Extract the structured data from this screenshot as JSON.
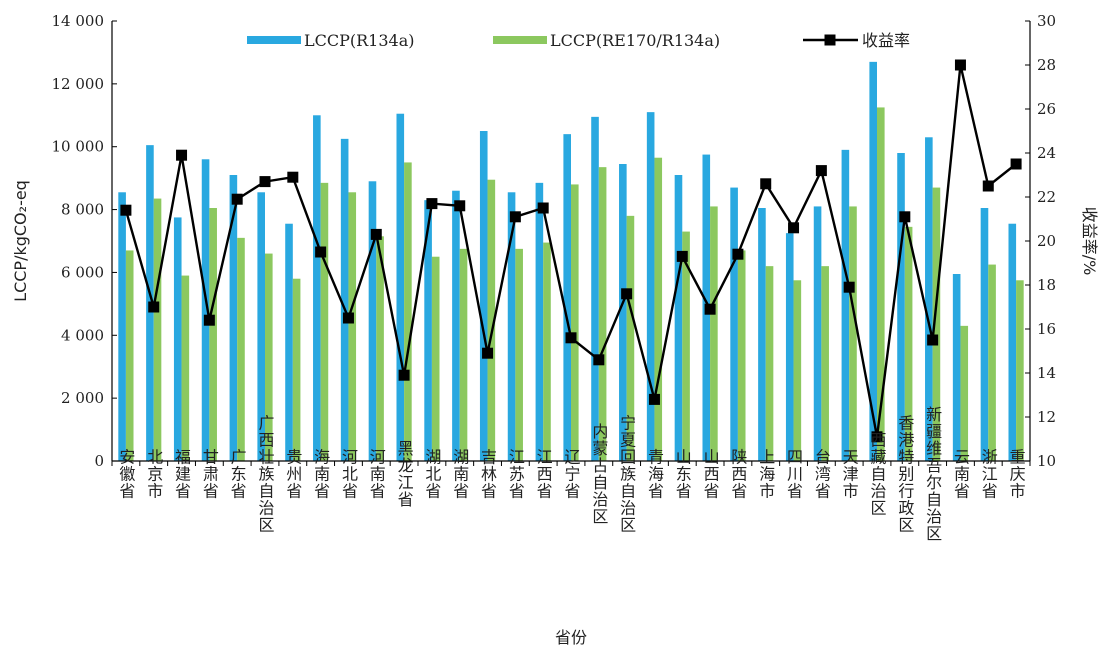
{
  "chart_data": {
    "type": "bar",
    "xlabel": "省份",
    "ylabel_left": "LCCP/kgCO₂-eq",
    "ylabel_right": "收益率/%",
    "ylim_left": [
      0,
      14000
    ],
    "yticks_left": [
      0,
      2000,
      4000,
      6000,
      8000,
      10000,
      12000,
      14000
    ],
    "ytick_labels_left": [
      "0",
      "2 000",
      "4 000",
      "6 000",
      "8 000",
      "10 000",
      "12 000",
      "14 000"
    ],
    "ylim_right": [
      10,
      30
    ],
    "yticks_right": [
      10,
      12,
      14,
      16,
      18,
      20,
      22,
      24,
      26,
      28,
      30
    ],
    "ytick_labels_right": [
      "10",
      "12",
      "14",
      "16",
      "18",
      "20",
      "22",
      "24",
      "26",
      "28",
      "30"
    ],
    "grid": false,
    "legend_position": "top",
    "categories": [
      "安徽省",
      "北京市",
      "福建省",
      "甘肃省",
      "广东省",
      "广西壮族自治区",
      "贵州省",
      "海南省",
      "河北省",
      "河南省",
      "黑龙江省",
      "湖北省",
      "湖南省",
      "吉林省",
      "江苏省",
      "江西省",
      "辽宁省",
      "内蒙古自治区",
      "宁夏回族自治区",
      "青海省",
      "山东省",
      "山西省",
      "陕西省",
      "上海市",
      "四川省",
      "台湾省",
      "天津市",
      "西藏自治区",
      "香港特别行政区",
      "新疆维吾尔自治区",
      "云南省",
      "浙江省",
      "重庆市"
    ],
    "series": [
      {
        "name": "LCCP(R134a)",
        "type": "bar",
        "axis": "left",
        "color": "#29a8e0",
        "values": [
          8550,
          10050,
          7750,
          9600,
          9100,
          8550,
          7550,
          11000,
          10250,
          8900,
          11050,
          8300,
          8600,
          10500,
          8550,
          8850,
          10400,
          10950,
          9450,
          11100,
          9100,
          9750,
          8700,
          8050,
          7250,
          8100,
          9900,
          12700,
          9800,
          10300,
          5950,
          8050,
          7550
        ]
      },
      {
        "name": "LCCP(RE170/R134a)",
        "type": "bar",
        "axis": "left",
        "color": "#8cc85f",
        "values": [
          6700,
          8350,
          5900,
          8050,
          7100,
          6600,
          5800,
          8850,
          8550,
          7150,
          9500,
          6500,
          6750,
          8950,
          6750,
          6950,
          8800,
          9350,
          7800,
          9650,
          7300,
          8100,
          6700,
          6200,
          5750,
          6200,
          8100,
          11250,
          7450,
          8700,
          4300,
          6250,
          5750
        ]
      },
      {
        "name": "收益率",
        "type": "line",
        "axis": "right",
        "color": "#000000",
        "values": [
          21.4,
          17.0,
          23.9,
          16.4,
          21.9,
          22.7,
          22.9,
          19.5,
          16.5,
          20.3,
          13.9,
          21.7,
          21.6,
          14.9,
          21.1,
          21.5,
          15.6,
          14.6,
          17.6,
          12.8,
          19.3,
          16.9,
          19.4,
          22.6,
          20.6,
          23.2,
          17.9,
          11.1,
          21.1,
          15.5,
          28.0,
          22.5,
          23.5
        ]
      }
    ]
  }
}
